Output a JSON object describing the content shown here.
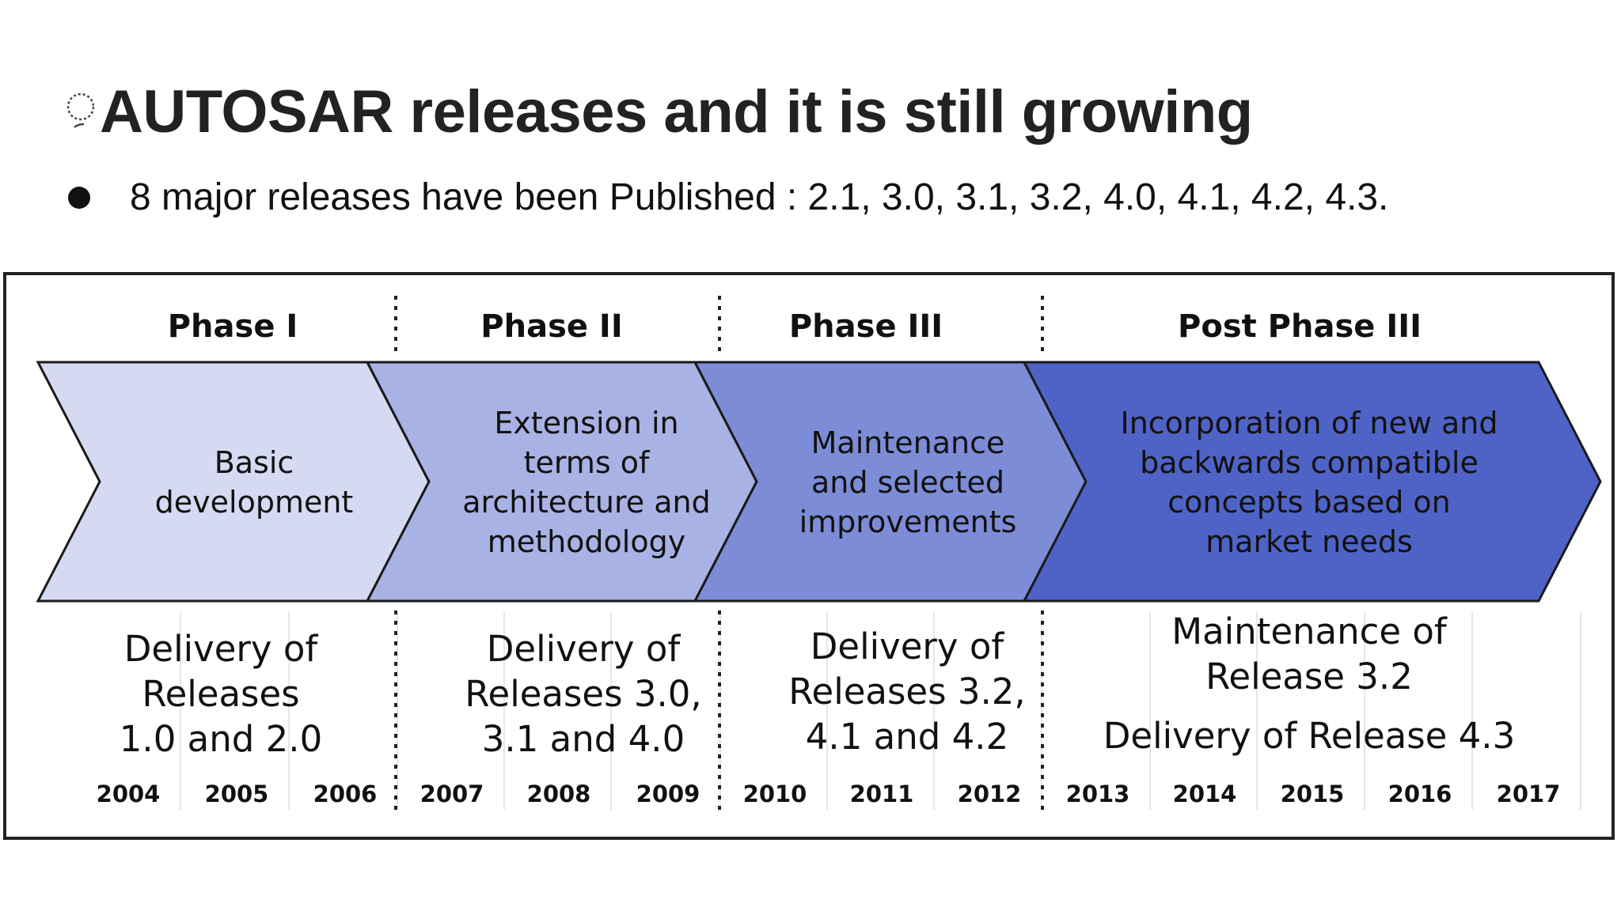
{
  "slide": {
    "title": "AUTOSAR releases and it is still growing",
    "title_icon": "lightbulb-icon",
    "bullet": "8 major releases have been Published : 2.1, 3.0, 3.1, 3.2, 4.0, 4.1, 4.2, 4.3."
  },
  "diagram": {
    "colors": {
      "phase1": "#d5d9f1",
      "phase2": "#a9b2e4",
      "phase3": "#7d8cd6",
      "phase4": "#4f63c6",
      "outline": "#1a1a1a"
    },
    "phases": [
      {
        "heading": "Phase I",
        "arrow_lines": [
          "Basic",
          "development"
        ],
        "delivery_lines": [
          "Delivery of",
          "Releases",
          "1.0 and 2.0"
        ],
        "years": [
          "2004",
          "2005",
          "2006"
        ]
      },
      {
        "heading": "Phase II",
        "arrow_lines": [
          "Extension in",
          "terms of",
          "architecture and",
          "methodology"
        ],
        "delivery_lines": [
          "Delivery of",
          "Releases 3.0,",
          "3.1 and 4.0"
        ],
        "years": [
          "2007",
          "2008",
          "2009"
        ]
      },
      {
        "heading": "Phase III",
        "arrow_lines": [
          "Maintenance",
          "and selected",
          "improvements"
        ],
        "delivery_lines": [
          "Delivery of",
          "Releases 3.2,",
          "4.1 and 4.2"
        ],
        "years": [
          "2010",
          "2011",
          "2012"
        ]
      },
      {
        "heading": "Post Phase III",
        "arrow_lines": [
          "Incorporation of new and",
          "backwards compatible",
          "concepts based on",
          "market needs"
        ],
        "delivery_lines": [
          "Maintenance of",
          "Release 3.2",
          "Delivery of Release 4.3"
        ],
        "years": [
          "2013",
          "2014",
          "2015",
          "2016",
          "2017"
        ]
      }
    ]
  }
}
